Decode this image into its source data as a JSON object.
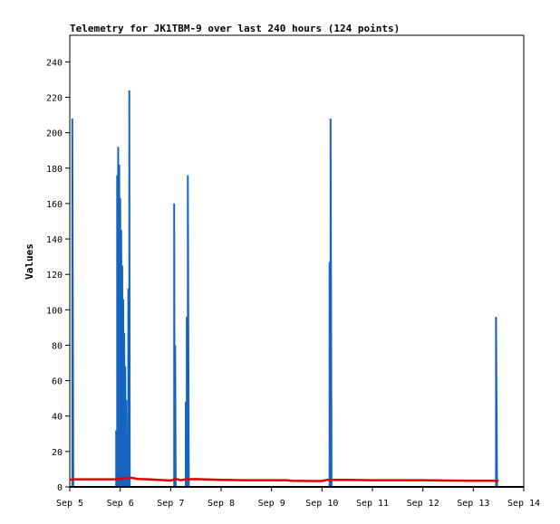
{
  "chart_data": {
    "type": "line",
    "title": "Telemetry for JK1TBM-9 over last 240 hours (124 points)",
    "xlabel": "",
    "ylabel": "Values",
    "xlim": [
      5,
      14
    ],
    "ylim": [
      0,
      255
    ],
    "x_ticks": [
      {
        "value": 5,
        "label": "Sep 5"
      },
      {
        "value": 6,
        "label": "Sep 6"
      },
      {
        "value": 7,
        "label": "Sep 7"
      },
      {
        "value": 8,
        "label": "Sep 8"
      },
      {
        "value": 9,
        "label": "Sep 9"
      },
      {
        "value": 10,
        "label": "Sep 10"
      },
      {
        "value": 11,
        "label": "Sep 11"
      },
      {
        "value": 12,
        "label": "Sep 12"
      },
      {
        "value": 13,
        "label": "Sep 13"
      },
      {
        "value": 14,
        "label": "Sep 14"
      }
    ],
    "y_ticks": [
      0,
      20,
      40,
      60,
      80,
      100,
      120,
      140,
      160,
      180,
      200,
      220,
      240
    ],
    "grid": false,
    "series": [
      {
        "color": "#1565c0",
        "style": "spikes",
        "points": [
          [
            5.05,
            0
          ],
          [
            5.05,
            208
          ],
          [
            5.07,
            0
          ],
          [
            5.92,
            0
          ],
          [
            5.92,
            32
          ],
          [
            5.93,
            0
          ],
          [
            5.94,
            0
          ],
          [
            5.94,
            176
          ],
          [
            5.95,
            0
          ],
          [
            5.96,
            0
          ],
          [
            5.96,
            192
          ],
          [
            5.97,
            0
          ],
          [
            5.98,
            0
          ],
          [
            5.98,
            182
          ],
          [
            5.99,
            0
          ],
          [
            6.0,
            0
          ],
          [
            6.0,
            163
          ],
          [
            6.01,
            0
          ],
          [
            6.02,
            0
          ],
          [
            6.02,
            145
          ],
          [
            6.03,
            0
          ],
          [
            6.04,
            0
          ],
          [
            6.04,
            125
          ],
          [
            6.05,
            0
          ],
          [
            6.06,
            0
          ],
          [
            6.06,
            106
          ],
          [
            6.07,
            0
          ],
          [
            6.08,
            0
          ],
          [
            6.08,
            87
          ],
          [
            6.09,
            0
          ],
          [
            6.1,
            0
          ],
          [
            6.1,
            68
          ],
          [
            6.11,
            0
          ],
          [
            6.12,
            0
          ],
          [
            6.12,
            49
          ],
          [
            6.13,
            0
          ],
          [
            6.14,
            0
          ],
          [
            6.14,
            30
          ],
          [
            6.15,
            0
          ],
          [
            6.16,
            0
          ],
          [
            6.16,
            112
          ],
          [
            6.17,
            0
          ],
          [
            6.18,
            0
          ],
          [
            6.18,
            224
          ],
          [
            6.19,
            0
          ],
          [
            7.07,
            0
          ],
          [
            7.07,
            160
          ],
          [
            7.08,
            0
          ],
          [
            7.09,
            0
          ],
          [
            7.09,
            80
          ],
          [
            7.1,
            0
          ],
          [
            7.3,
            0
          ],
          [
            7.3,
            48
          ],
          [
            7.31,
            0
          ],
          [
            7.32,
            0
          ],
          [
            7.32,
            96
          ],
          [
            7.33,
            0
          ],
          [
            7.34,
            0
          ],
          [
            7.34,
            176
          ],
          [
            7.36,
            0
          ],
          [
            10.15,
            0
          ],
          [
            10.15,
            127
          ],
          [
            10.16,
            0
          ],
          [
            10.17,
            0
          ],
          [
            10.17,
            208
          ],
          [
            10.19,
            0
          ],
          [
            13.45,
            0
          ],
          [
            13.45,
            96
          ],
          [
            13.47,
            0
          ]
        ]
      },
      {
        "color": "#e00000",
        "style": "line",
        "points": [
          [
            5.0,
            4
          ],
          [
            5.05,
            4.3
          ],
          [
            5.5,
            4.3
          ],
          [
            5.95,
            4.3
          ],
          [
            6.0,
            4.8
          ],
          [
            6.1,
            4.8
          ],
          [
            6.2,
            5.2
          ],
          [
            6.35,
            4.5
          ],
          [
            6.6,
            4.2
          ],
          [
            7.0,
            3.6
          ],
          [
            7.1,
            4.5
          ],
          [
            7.2,
            3.8
          ],
          [
            7.3,
            4.3
          ],
          [
            7.5,
            4.4
          ],
          [
            8.0,
            4.0
          ],
          [
            8.5,
            3.8
          ],
          [
            9.0,
            3.8
          ],
          [
            9.3,
            3.8
          ],
          [
            9.4,
            3.5
          ],
          [
            9.8,
            3.3
          ],
          [
            10.0,
            3.3
          ],
          [
            10.1,
            4.0
          ],
          [
            10.5,
            4.0
          ],
          [
            11.0,
            3.8
          ],
          [
            11.5,
            3.8
          ],
          [
            12.0,
            3.8
          ],
          [
            12.5,
            3.6
          ],
          [
            13.0,
            3.5
          ],
          [
            13.2,
            3.4
          ],
          [
            13.4,
            3.4
          ],
          [
            13.5,
            3.4
          ]
        ]
      }
    ]
  }
}
